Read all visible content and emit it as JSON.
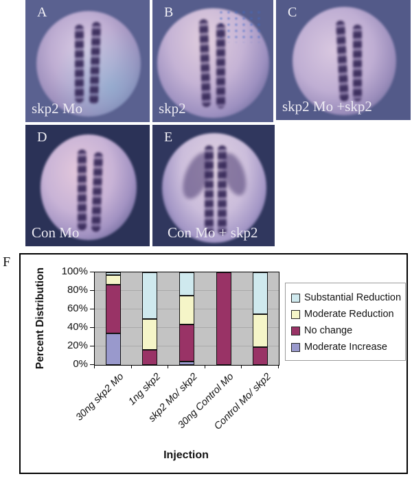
{
  "figure": {
    "panels": [
      {
        "letter": "A",
        "caption": "skp2 Mo"
      },
      {
        "letter": "B",
        "caption": "skp2"
      },
      {
        "letter": "C",
        "caption": "skp2 Mo +skp2"
      },
      {
        "letter": "D",
        "caption": "Con Mo"
      },
      {
        "letter": "E",
        "caption": "Con Mo + skp2"
      },
      {
        "letter": "F"
      }
    ],
    "label_color": "#f2f1f6"
  },
  "chart_data": {
    "type": "bar",
    "stacked": true,
    "title": "",
    "xlabel": "Injection",
    "ylabel": "Percent Distribution",
    "categories": [
      "30ng skp2 Mo",
      "1ng skp2",
      "skp2 Mo/ skp2",
      "30ng Control Mo",
      "Control Mo/ skp2"
    ],
    "series": [
      {
        "name": "Moderate Increase",
        "color": "#9999CC",
        "values": [
          34,
          0,
          4,
          0,
          0
        ]
      },
      {
        "name": "No change",
        "color": "#993366",
        "values": [
          53,
          16,
          40,
          100,
          19
        ]
      },
      {
        "name": "Moderate Reduction",
        "color": "#F5F5C8",
        "values": [
          10,
          34,
          31,
          0,
          36
        ]
      },
      {
        "name": "Substantial Reduction",
        "color": "#CFE9EE",
        "values": [
          3,
          50,
          25,
          0,
          45
        ]
      }
    ],
    "legend_order": [
      "Substantial Reduction",
      "Moderate Reduction",
      "No change",
      "Moderate Increase"
    ],
    "legend_position": "right",
    "y_ticks": [
      "100%",
      "80%",
      "60%",
      "40%",
      "20%",
      "0%"
    ],
    "ylim": [
      0,
      100
    ],
    "grid": true,
    "plot_bg": "#C3C3C3"
  }
}
